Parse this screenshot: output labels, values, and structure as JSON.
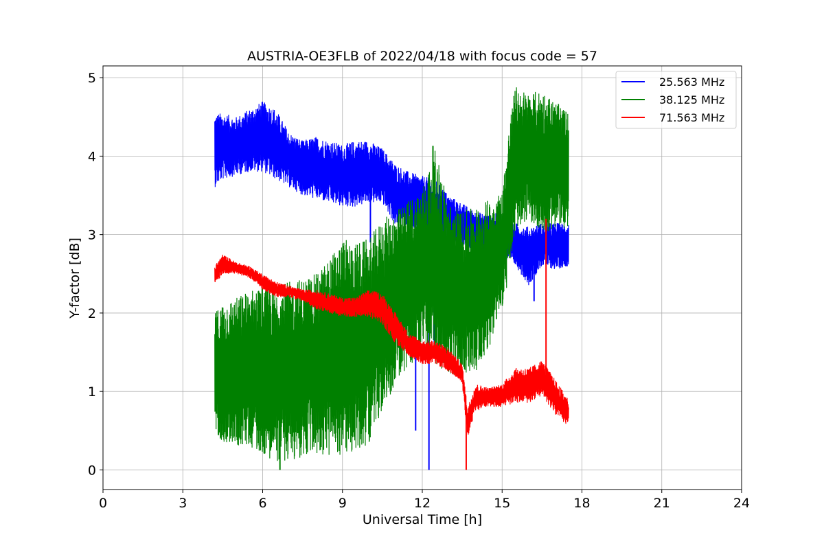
{
  "chart_data": {
    "type": "line",
    "title": "AUSTRIA-OE3FLB of 2022/04/18 with focus code = 57",
    "xlabel": "Universal Time [h]",
    "ylabel": "Y-factor [dB]",
    "xlim": [
      0,
      24
    ],
    "ylim": [
      -0.25,
      5.15
    ],
    "xticks": [
      0,
      3,
      6,
      9,
      12,
      15,
      18,
      21,
      24
    ],
    "yticks": [
      0,
      1,
      2,
      3,
      4,
      5
    ],
    "grid": true,
    "legend_position": "top-right",
    "series": [
      {
        "name": "25.563 MHz",
        "color": "#0000ff",
        "x": [
          4.2,
          4.5,
          5.0,
          5.5,
          6.0,
          6.5,
          7.0,
          7.5,
          8.0,
          8.5,
          9.0,
          9.5,
          10.0,
          10.5,
          11.0,
          11.5,
          12.0,
          12.5,
          13.0,
          13.5,
          14.0,
          14.5,
          15.0,
          15.5,
          16.0,
          16.5,
          17.0,
          17.5
        ],
        "upper": [
          4.55,
          4.55,
          4.5,
          4.6,
          4.7,
          4.6,
          4.3,
          4.2,
          4.25,
          4.2,
          4.15,
          4.2,
          4.2,
          4.1,
          3.9,
          3.8,
          3.75,
          3.7,
          3.5,
          3.4,
          3.3,
          3.25,
          3.3,
          3.15,
          3.1,
          3.15,
          3.15,
          3.15
        ],
        "lower": [
          3.6,
          3.7,
          3.75,
          3.8,
          3.8,
          3.7,
          3.6,
          3.5,
          3.45,
          3.4,
          3.35,
          3.35,
          3.4,
          3.4,
          3.1,
          3.1,
          3.0,
          2.95,
          2.9,
          2.85,
          2.8,
          2.75,
          2.7,
          2.6,
          2.35,
          2.6,
          2.55,
          2.6
        ],
        "spikes": [
          [
            10.05,
            2.9
          ],
          [
            11.75,
            0.5
          ],
          [
            12.25,
            0.0
          ],
          [
            12.45,
            1.5
          ],
          [
            16.2,
            2.15
          ]
        ]
      },
      {
        "name": "38.125 MHz",
        "color": "#008000",
        "x": [
          4.2,
          4.5,
          5.0,
          5.5,
          6.0,
          6.5,
          7.0,
          7.5,
          8.0,
          8.5,
          9.0,
          9.5,
          10.0,
          10.5,
          11.0,
          11.5,
          12.0,
          12.5,
          13.0,
          13.5,
          14.0,
          14.5,
          15.0,
          15.3,
          15.5,
          16.0,
          16.5,
          17.0,
          17.5
        ],
        "upper": [
          2.0,
          2.15,
          2.2,
          2.3,
          2.35,
          2.35,
          2.4,
          2.45,
          2.5,
          2.7,
          2.95,
          2.9,
          2.95,
          3.2,
          3.3,
          3.45,
          3.6,
          4.1,
          3.4,
          3.3,
          3.35,
          3.45,
          3.55,
          4.5,
          4.9,
          4.8,
          4.85,
          4.7,
          4.55
        ],
        "lower": [
          0.5,
          0.35,
          0.3,
          0.3,
          0.2,
          0.1,
          0.1,
          0.15,
          0.2,
          0.15,
          0.2,
          0.2,
          0.35,
          0.75,
          1.1,
          1.3,
          1.5,
          1.35,
          1.2,
          1.2,
          1.25,
          1.55,
          2.05,
          2.5,
          3.05,
          3.2,
          3.0,
          3.05,
          3.1
        ],
        "spikes": [
          [
            6.65,
            0.0
          ],
          [
            12.4,
            4.13
          ]
        ]
      },
      {
        "name": "71.563 MHz",
        "color": "#ff0000",
        "x": [
          4.2,
          4.5,
          5.0,
          5.5,
          6.0,
          6.5,
          7.0,
          7.5,
          8.0,
          8.5,
          9.0,
          9.5,
          10.0,
          10.5,
          11.0,
          11.5,
          12.0,
          12.5,
          13.0,
          13.5,
          13.7,
          14.0,
          14.5,
          15.0,
          15.5,
          16.0,
          16.5,
          17.0,
          17.5
        ],
        "upper": [
          2.6,
          2.75,
          2.65,
          2.6,
          2.5,
          2.4,
          2.35,
          2.3,
          2.3,
          2.25,
          2.2,
          2.2,
          2.3,
          2.25,
          2.0,
          1.75,
          1.65,
          1.65,
          1.55,
          1.35,
          0.8,
          1.1,
          1.05,
          1.1,
          1.3,
          1.3,
          1.4,
          1.15,
          0.9
        ],
        "lower": [
          2.35,
          2.5,
          2.5,
          2.45,
          2.3,
          2.2,
          2.2,
          2.15,
          2.05,
          2.0,
          1.95,
          1.95,
          1.95,
          1.85,
          1.6,
          1.45,
          1.35,
          1.35,
          1.25,
          1.1,
          0.4,
          0.75,
          0.8,
          0.8,
          0.85,
          0.85,
          0.95,
          0.7,
          0.55
        ],
        "spikes": [
          [
            13.65,
            0.0
          ],
          [
            16.65,
            3.2
          ]
        ]
      }
    ]
  }
}
